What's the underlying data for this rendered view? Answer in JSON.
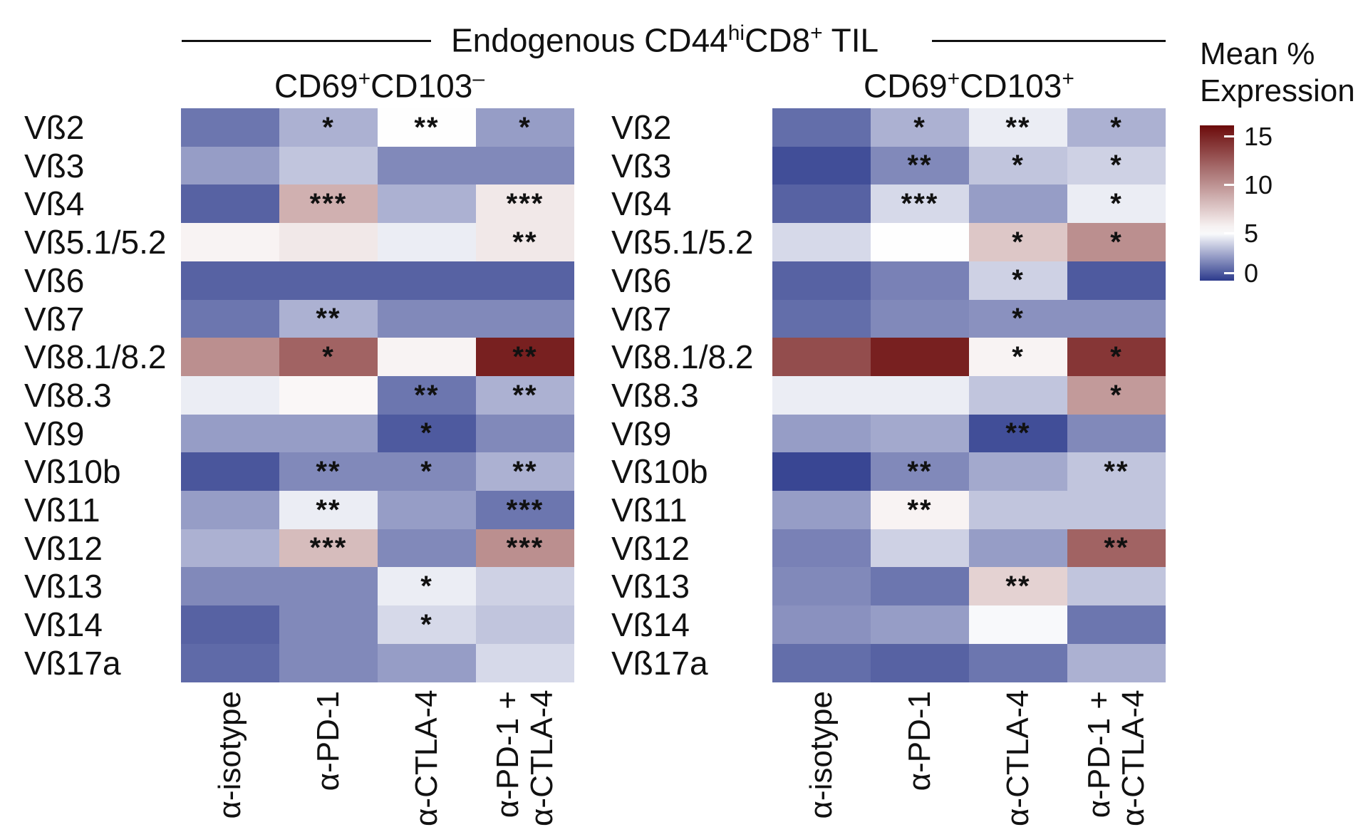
{
  "title": {
    "prefix": "Endogenous CD44",
    "sup1": "hi",
    "middle": "CD8",
    "sup2": "+",
    "suffix": " TIL"
  },
  "panels_text": [
    {
      "base1": "CD69",
      "sup1": "+",
      "base2": "CD103",
      "sup2": "–"
    },
    {
      "base1": "CD69",
      "sup1": "+",
      "base2": "CD103",
      "sup2": "+"
    }
  ],
  "legend": {
    "title_line1": "Mean %",
    "title_line2": "Expression",
    "ticks": [
      "15",
      "10",
      "5",
      "0"
    ],
    "tick_values": [
      15,
      10,
      5,
      0
    ],
    "range": [
      0,
      16
    ],
    "colors": {
      "low": "#2c3a8c",
      "mid": "#ffffff",
      "high": "#6b0a0a"
    }
  },
  "chart_data": {
    "type": "heatmap",
    "title": "Endogenous CD44hiCD8+ TIL",
    "rows": [
      "Vß2",
      "Vß3",
      "Vß4",
      "Vß5.1/5.2",
      "Vß6",
      "Vß7",
      "Vß8.1/8.2",
      "Vß8.3",
      "Vß9",
      "Vß10b",
      "Vß11",
      "Vß12",
      "Vß13",
      "Vß14",
      "Vß17a"
    ],
    "columns": [
      [
        "α-isotype"
      ],
      [
        "α-PD-1"
      ],
      [
        "α-CTLA-4"
      ],
      [
        "α-PD-1 +",
        "α-CTLA-4"
      ]
    ],
    "color_range": [
      0,
      16
    ],
    "panels": [
      {
        "name": "CD69+CD103–",
        "values": [
          [
            1.5,
            3.0,
            5.0,
            2.5
          ],
          [
            2.5,
            3.5,
            2.0,
            2.0
          ],
          [
            1.0,
            8.5,
            3.0,
            6.0
          ],
          [
            5.5,
            6.0,
            4.5,
            6.0
          ],
          [
            1.0,
            1.0,
            1.0,
            1.0
          ],
          [
            1.5,
            3.0,
            2.0,
            2.0
          ],
          [
            10.0,
            12.0,
            5.5,
            15.0
          ],
          [
            4.5,
            5.3,
            1.5,
            3.0
          ],
          [
            2.5,
            2.5,
            0.8,
            2.0
          ],
          [
            0.7,
            2.0,
            2.0,
            3.0
          ],
          [
            2.5,
            4.5,
            2.5,
            1.5
          ],
          [
            3.0,
            8.0,
            2.0,
            10.0
          ],
          [
            2.0,
            2.0,
            4.5,
            3.8
          ],
          [
            1.0,
            2.0,
            4.0,
            3.5
          ],
          [
            1.2,
            2.0,
            2.5,
            4.0
          ]
        ],
        "annotations": [
          [
            "",
            "*",
            "**",
            "*"
          ],
          [
            "",
            "",
            "",
            ""
          ],
          [
            "",
            "***",
            "",
            "***"
          ],
          [
            "",
            "",
            "",
            "**"
          ],
          [
            "",
            "",
            "",
            ""
          ],
          [
            "",
            "**",
            "",
            ""
          ],
          [
            "",
            "*",
            "",
            "**"
          ],
          [
            "",
            "",
            "**",
            "**"
          ],
          [
            "",
            "",
            "*",
            ""
          ],
          [
            "",
            "**",
            "*",
            "**"
          ],
          [
            "",
            "**",
            "",
            "***"
          ],
          [
            "",
            "***",
            "",
            "***"
          ],
          [
            "",
            "",
            "*",
            ""
          ],
          [
            "",
            "",
            "*",
            ""
          ],
          [
            "",
            "",
            "",
            ""
          ]
        ]
      },
      {
        "name": "CD69+CD103+",
        "values": [
          [
            1.3,
            3.0,
            4.5,
            3.0
          ],
          [
            0.5,
            2.0,
            3.5,
            3.8
          ],
          [
            1.0,
            4.0,
            2.5,
            4.5
          ],
          [
            4.0,
            5.0,
            7.5,
            10.0
          ],
          [
            1.0,
            1.8,
            3.8,
            0.8
          ],
          [
            1.3,
            2.0,
            2.2,
            2.2
          ],
          [
            13.0,
            15.0,
            5.5,
            14.0
          ],
          [
            4.5,
            4.5,
            3.5,
            9.5
          ],
          [
            2.5,
            2.8,
            0.5,
            2.0
          ],
          [
            0.3,
            2.0,
            2.8,
            3.5
          ],
          [
            2.5,
            5.5,
            3.5,
            3.5
          ],
          [
            1.8,
            3.8,
            2.5,
            12.0
          ],
          [
            2.0,
            1.5,
            7.0,
            3.5
          ],
          [
            2.2,
            2.5,
            4.8,
            1.5
          ],
          [
            1.3,
            1.0,
            1.5,
            3.0
          ]
        ],
        "annotations": [
          [
            "",
            "*",
            "**",
            "*"
          ],
          [
            "",
            "**",
            "*",
            "*"
          ],
          [
            "",
            "***",
            "",
            "*"
          ],
          [
            "",
            "",
            "*",
            "*"
          ],
          [
            "",
            "",
            "*",
            ""
          ],
          [
            "",
            "",
            "*",
            ""
          ],
          [
            "",
            "",
            "*",
            "*"
          ],
          [
            "",
            "",
            "",
            "*"
          ],
          [
            "",
            "",
            "**",
            ""
          ],
          [
            "",
            "**",
            "",
            "**"
          ],
          [
            "",
            "**",
            "",
            ""
          ],
          [
            "",
            "",
            "",
            "**"
          ],
          [
            "",
            "",
            "**",
            ""
          ],
          [
            "",
            "",
            "",
            ""
          ],
          [
            "",
            "",
            "",
            ""
          ]
        ]
      }
    ]
  }
}
